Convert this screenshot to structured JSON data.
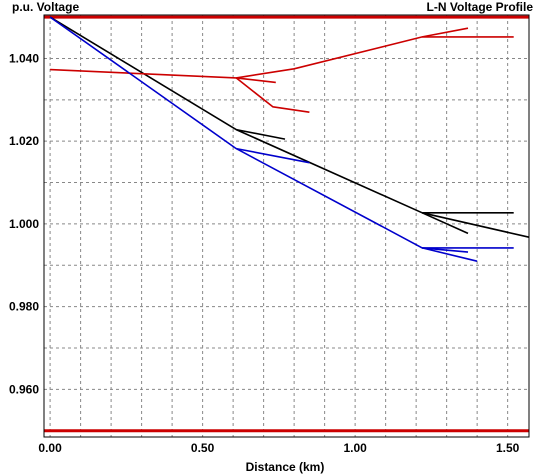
{
  "chart_data": {
    "type": "line",
    "title": "L-N Voltage Profile",
    "ylabel": "p.u. Voltage",
    "xlabel": "Distance (km)",
    "xlim": [
      -0.02,
      1.57
    ],
    "ylim": [
      0.9485,
      1.0505
    ],
    "x_ticks": [
      0,
      0.5,
      1.0,
      1.5
    ],
    "x_tick_labels": [
      "0.00",
      "0.50",
      "1.00",
      "1.50"
    ],
    "y_ticks": [
      0.96,
      0.98,
      1.0,
      1.02,
      1.04
    ],
    "y_tick_labels": [
      "0.960",
      "0.980",
      "1.000",
      "1.020",
      "1.040"
    ],
    "x_grid": [
      0,
      0.1,
      0.2,
      0.3,
      0.4,
      0.5,
      0.6,
      0.7,
      0.8,
      0.9,
      1.0,
      1.1,
      1.2,
      1.3,
      1.4,
      1.5
    ],
    "y_grid": [
      0.96,
      0.97,
      0.98,
      0.99,
      1.0,
      1.01,
      1.02,
      1.03,
      1.04
    ],
    "grid": true,
    "colors": {
      "black": "#000000",
      "red": "#cc0000",
      "blue": "#0000cc",
      "grid": "#888888"
    },
    "limit_lines": [
      {
        "y": 1.05,
        "color": "#cc0000"
      },
      {
        "y": 0.95,
        "color": "#cc0000"
      }
    ],
    "series": [
      {
        "color": "#000000",
        "points": [
          [
            0.0,
            1.05
          ],
          [
            0.61,
            1.0228
          ],
          [
            1.22,
            1.0027
          ],
          [
            1.57,
            0.9968
          ]
        ]
      },
      {
        "color": "#000000",
        "points": [
          [
            0.61,
            1.0228
          ],
          [
            0.77,
            1.0205
          ]
        ]
      },
      {
        "color": "#000000",
        "points": [
          [
            1.22,
            1.0027
          ],
          [
            1.52,
            1.0027
          ]
        ]
      },
      {
        "color": "#000000",
        "points": [
          [
            1.22,
            1.0027
          ],
          [
            1.37,
            0.9977
          ]
        ]
      },
      {
        "color": "#cc0000",
        "points": [
          [
            0.0,
            1.0373
          ],
          [
            0.61,
            1.0353
          ],
          [
            0.8,
            1.0375
          ],
          [
            1.22,
            1.0452
          ],
          [
            1.37,
            1.0473
          ]
        ]
      },
      {
        "color": "#cc0000",
        "points": [
          [
            0.61,
            1.0353
          ],
          [
            0.74,
            1.0342
          ]
        ]
      },
      {
        "color": "#cc0000",
        "points": [
          [
            0.61,
            1.0353
          ],
          [
            0.73,
            1.0283
          ],
          [
            0.85,
            1.027
          ]
        ]
      },
      {
        "color": "#cc0000",
        "points": [
          [
            1.22,
            1.0452
          ],
          [
            1.52,
            1.0452
          ]
        ]
      },
      {
        "color": "#0000cc",
        "points": [
          [
            0.0,
            1.05
          ],
          [
            0.61,
            1.0182
          ],
          [
            1.22,
            0.9942
          ],
          [
            1.52,
            0.9942
          ]
        ]
      },
      {
        "color": "#0000cc",
        "points": [
          [
            0.61,
            1.0182
          ],
          [
            0.85,
            1.0148
          ]
        ]
      },
      {
        "color": "#0000cc",
        "points": [
          [
            1.22,
            0.9942
          ],
          [
            1.37,
            0.9932
          ]
        ]
      },
      {
        "color": "#0000cc",
        "points": [
          [
            1.22,
            0.9942
          ],
          [
            1.4,
            0.991
          ]
        ]
      }
    ]
  }
}
